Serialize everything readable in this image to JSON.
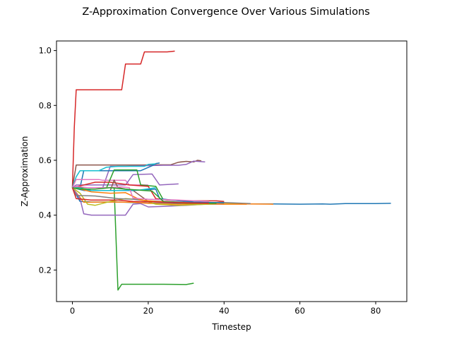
{
  "chart_data": {
    "type": "line",
    "title": "Z-Approximation Convergence Over Various Simulations",
    "xlabel": "Timestep",
    "ylabel": "Z-Approximation",
    "xlim": [
      -4.2,
      88.2
    ],
    "ylim": [
      0.085,
      1.035
    ],
    "xticks": [
      0,
      20,
      40,
      60,
      80
    ],
    "yticks": [
      0.2,
      0.4,
      0.6,
      0.8,
      1.0
    ],
    "xtick_labels": [
      "0",
      "20",
      "40",
      "60",
      "80"
    ],
    "ytick_labels": [
      "0.2",
      "0.4",
      "0.6",
      "0.8",
      "1.0"
    ],
    "grid": false,
    "legend": "none",
    "series": [
      {
        "color": "#d62728",
        "points": [
          [
            0,
            0.5
          ],
          [
            0.5,
            0.72
          ],
          [
            1,
            0.857
          ],
          [
            13,
            0.857
          ],
          [
            14,
            0.951
          ],
          [
            18,
            0.951
          ],
          [
            19,
            0.995
          ],
          [
            25,
            0.995
          ],
          [
            27,
            0.998
          ]
        ]
      },
      {
        "color": "#2ca02c",
        "points": [
          [
            0,
            0.5
          ],
          [
            11,
            0.5
          ],
          [
            12,
            0.127
          ],
          [
            13,
            0.148
          ],
          [
            24,
            0.148
          ],
          [
            30,
            0.147
          ],
          [
            32,
            0.152
          ]
        ]
      },
      {
        "color": "#1f77b4",
        "points": [
          [
            0,
            0.5
          ],
          [
            2,
            0.45
          ],
          [
            5,
            0.448
          ],
          [
            12,
            0.448
          ],
          [
            20,
            0.444
          ],
          [
            30,
            0.442
          ],
          [
            40,
            0.441
          ],
          [
            53,
            0.441
          ],
          [
            60,
            0.44
          ],
          [
            66,
            0.441
          ],
          [
            68,
            0.44
          ],
          [
            72,
            0.442
          ],
          [
            80,
            0.442
          ],
          [
            84,
            0.443
          ]
        ]
      },
      {
        "color": "#ff7f0e",
        "points": [
          [
            0,
            0.5
          ],
          [
            3,
            0.447
          ],
          [
            10,
            0.448
          ],
          [
            16,
            0.447
          ],
          [
            20,
            0.443
          ],
          [
            28,
            0.44
          ],
          [
            36,
            0.442
          ],
          [
            45,
            0.441
          ],
          [
            53,
            0.44
          ]
        ]
      },
      {
        "color": "#8c564b",
        "points": [
          [
            0,
            0.5
          ],
          [
            1,
            0.583
          ],
          [
            11,
            0.583
          ],
          [
            18,
            0.583
          ],
          [
            26,
            0.584
          ],
          [
            28,
            0.593
          ],
          [
            30,
            0.596
          ],
          [
            32,
            0.594
          ],
          [
            33,
            0.6
          ],
          [
            34,
            0.598
          ]
        ]
      },
      {
        "color": "#9467bd",
        "points": [
          [
            0,
            0.5
          ],
          [
            8,
            0.5
          ],
          [
            10,
            0.578
          ],
          [
            14,
            0.578
          ],
          [
            18,
            0.58
          ],
          [
            24,
            0.582
          ],
          [
            28,
            0.582
          ],
          [
            30,
            0.585
          ],
          [
            32,
            0.597
          ],
          [
            35,
            0.594
          ]
        ]
      },
      {
        "color": "#1f77b4",
        "points": [
          [
            0,
            0.5
          ],
          [
            2,
            0.5
          ],
          [
            3,
            0.562
          ],
          [
            12,
            0.562
          ],
          [
            18,
            0.562
          ],
          [
            21,
            0.58
          ],
          [
            22,
            0.588
          ],
          [
            23,
            0.59
          ]
        ]
      },
      {
        "color": "#17becf",
        "points": [
          [
            0,
            0.5
          ],
          [
            1,
            0.54
          ],
          [
            2,
            0.562
          ],
          [
            7,
            0.562
          ],
          [
            9,
            0.575
          ],
          [
            12,
            0.578
          ],
          [
            19,
            0.578
          ],
          [
            20,
            0.585
          ],
          [
            22,
            0.587
          ]
        ]
      },
      {
        "color": "#e377c2",
        "points": [
          [
            0,
            0.5
          ],
          [
            1,
            0.53
          ],
          [
            3,
            0.53
          ],
          [
            7,
            0.53
          ],
          [
            8,
            0.527
          ],
          [
            14,
            0.527
          ],
          [
            15,
            0.51
          ],
          [
            20,
            0.51
          ]
        ]
      },
      {
        "color": "#9467bd",
        "points": [
          [
            0,
            0.5
          ],
          [
            1,
            0.51
          ],
          [
            12,
            0.51
          ],
          [
            14,
            0.51
          ],
          [
            16,
            0.548
          ],
          [
            21,
            0.55
          ],
          [
            23,
            0.51
          ],
          [
            28,
            0.514
          ]
        ]
      },
      {
        "color": "#2ca02c",
        "points": [
          [
            0,
            0.5
          ],
          [
            9,
            0.5
          ],
          [
            11,
            0.565
          ],
          [
            17,
            0.565
          ],
          [
            18,
            0.51
          ],
          [
            22,
            0.505
          ],
          [
            24,
            0.455
          ]
        ]
      },
      {
        "color": "#d62728",
        "points": [
          [
            0,
            0.5
          ],
          [
            6,
            0.52
          ],
          [
            10,
            0.52
          ],
          [
            15,
            0.51
          ],
          [
            20,
            0.505
          ],
          [
            22,
            0.46
          ],
          [
            25,
            0.455
          ],
          [
            30,
            0.452
          ],
          [
            38,
            0.452
          ],
          [
            40,
            0.45
          ]
        ]
      },
      {
        "color": "#9467bd",
        "points": [
          [
            0,
            0.5
          ],
          [
            2,
            0.46
          ],
          [
            3,
            0.405
          ],
          [
            5,
            0.4
          ],
          [
            14,
            0.4
          ],
          [
            16,
            0.44
          ],
          [
            18,
            0.442
          ],
          [
            20,
            0.43
          ],
          [
            24,
            0.432
          ],
          [
            30,
            0.436
          ],
          [
            35,
            0.44
          ],
          [
            40,
            0.44
          ]
        ]
      },
      {
        "color": "#8c564b",
        "points": [
          [
            0,
            0.5
          ],
          [
            4,
            0.49
          ],
          [
            10,
            0.49
          ],
          [
            11,
            0.528
          ],
          [
            12,
            0.5
          ],
          [
            16,
            0.49
          ],
          [
            20,
            0.45
          ],
          [
            26,
            0.448
          ],
          [
            34,
            0.445
          ],
          [
            40,
            0.447
          ]
        ]
      },
      {
        "color": "#bcbd22",
        "points": [
          [
            0,
            0.5
          ],
          [
            2,
            0.48
          ],
          [
            4,
            0.44
          ],
          [
            6,
            0.436
          ],
          [
            10,
            0.45
          ],
          [
            14,
            0.46
          ],
          [
            18,
            0.457
          ],
          [
            22,
            0.44
          ],
          [
            28,
            0.436
          ],
          [
            36,
            0.44
          ],
          [
            44,
            0.442
          ]
        ]
      },
      {
        "color": "#7f7f7f",
        "points": [
          [
            0,
            0.5
          ],
          [
            1,
            0.472
          ],
          [
            6,
            0.47
          ],
          [
            12,
            0.46
          ],
          [
            16,
            0.458
          ],
          [
            20,
            0.452
          ],
          [
            24,
            0.45
          ],
          [
            32,
            0.446
          ],
          [
            40,
            0.446
          ],
          [
            47,
            0.442
          ]
        ]
      },
      {
        "color": "#1f77b4",
        "points": [
          [
            0,
            0.5
          ],
          [
            3,
            0.49
          ],
          [
            8,
            0.49
          ],
          [
            16,
            0.49
          ],
          [
            20,
            0.493
          ],
          [
            22,
            0.495
          ],
          [
            23,
            0.46
          ],
          [
            26,
            0.455
          ],
          [
            32,
            0.448
          ],
          [
            40,
            0.445
          ]
        ]
      },
      {
        "color": "#17becf",
        "points": [
          [
            0,
            0.5
          ],
          [
            1,
            0.5
          ],
          [
            5,
            0.49
          ],
          [
            12,
            0.49
          ],
          [
            18,
            0.492
          ],
          [
            20,
            0.496
          ],
          [
            22,
            0.5
          ]
        ]
      },
      {
        "color": "#ff7f0e",
        "points": [
          [
            0,
            0.5
          ],
          [
            2,
            0.495
          ],
          [
            5,
            0.485
          ],
          [
            10,
            0.48
          ],
          [
            14,
            0.482
          ],
          [
            18,
            0.455
          ],
          [
            22,
            0.45
          ],
          [
            30,
            0.445
          ],
          [
            40,
            0.44
          ],
          [
            46,
            0.44
          ]
        ]
      },
      {
        "color": "#e377c2",
        "points": [
          [
            0,
            0.5
          ],
          [
            1,
            0.505
          ],
          [
            4,
            0.5
          ],
          [
            9,
            0.5
          ],
          [
            13,
            0.503
          ],
          [
            15,
            0.5
          ],
          [
            16,
            0.462
          ],
          [
            20,
            0.458
          ],
          [
            28,
            0.455
          ],
          [
            36,
            0.45
          ]
        ]
      },
      {
        "color": "#2ca02c",
        "points": [
          [
            0,
            0.5
          ],
          [
            2,
            0.495
          ],
          [
            6,
            0.495
          ],
          [
            10,
            0.5
          ],
          [
            14,
            0.495
          ],
          [
            19,
            0.49
          ],
          [
            21,
            0.488
          ],
          [
            24,
            0.45
          ],
          [
            30,
            0.444
          ],
          [
            38,
            0.443
          ]
        ]
      },
      {
        "color": "#d62728",
        "points": [
          [
            0,
            0.5
          ],
          [
            1,
            0.46
          ],
          [
            5,
            0.455
          ],
          [
            12,
            0.455
          ],
          [
            16,
            0.45
          ],
          [
            22,
            0.448
          ],
          [
            30,
            0.445
          ],
          [
            36,
            0.444
          ]
        ]
      }
    ]
  }
}
